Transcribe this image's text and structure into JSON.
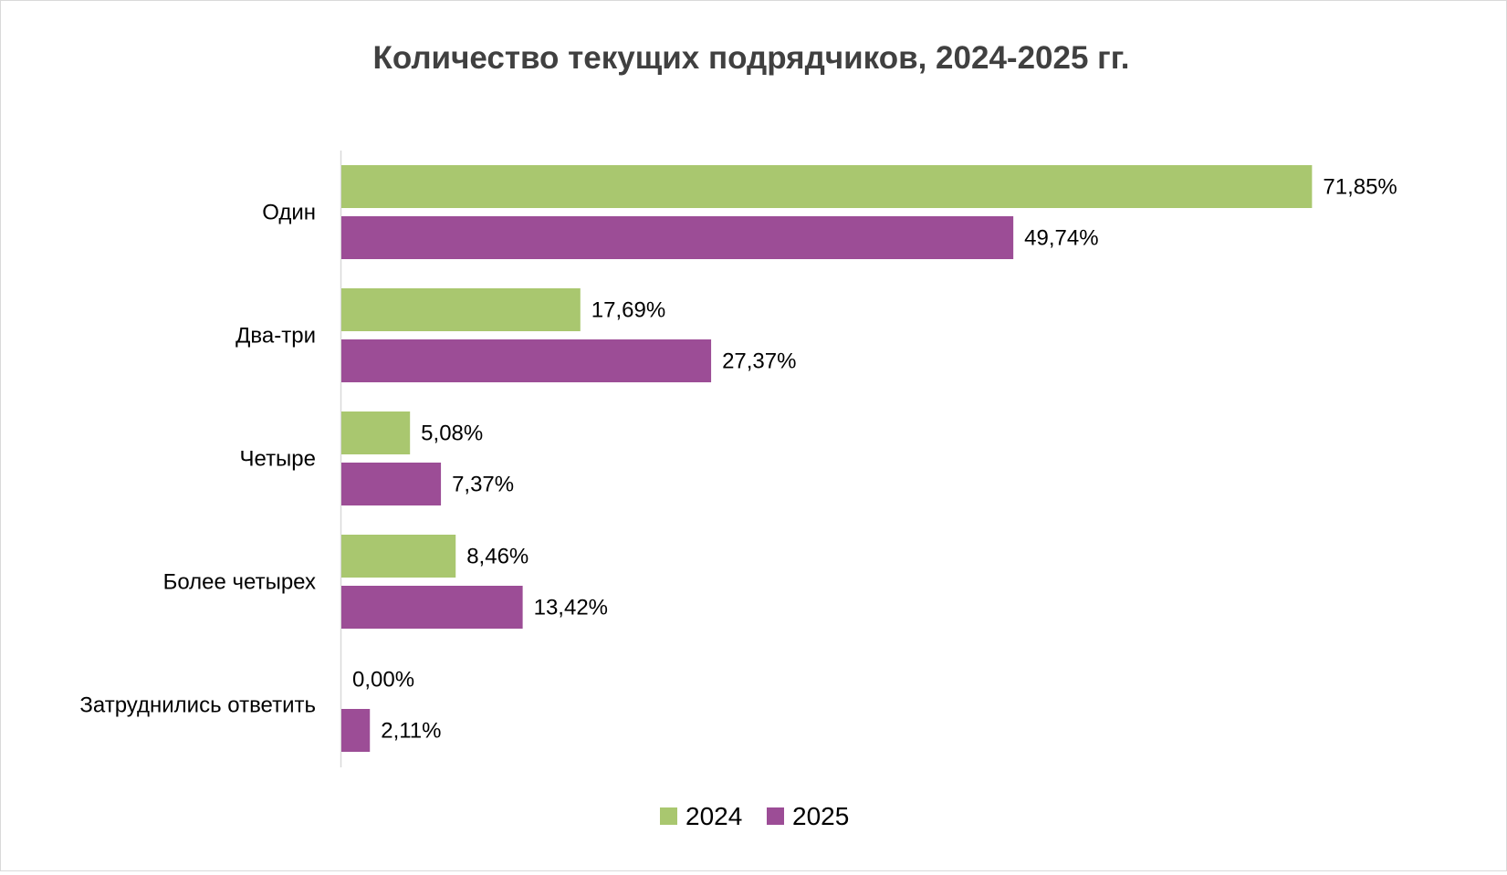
{
  "chart_data": {
    "type": "bar",
    "orientation": "horizontal",
    "title": "Количество текущих подрядчиков, 2024-2025 гг.",
    "xlabel": "",
    "ylabel": "",
    "xlim": [
      0,
      75
    ],
    "grid": false,
    "legend_position": "bottom",
    "categories": [
      "Один",
      "Два-три",
      "Четыре",
      "Более четырех",
      "Затруднились ответить"
    ],
    "series": [
      {
        "name": "2024",
        "color": "#a9c76f",
        "values": [
          71.85,
          17.69,
          5.08,
          8.46,
          0.0
        ],
        "labels": [
          "71,85%",
          "17,69%",
          "5,08%",
          "8,46%",
          "0,00%"
        ]
      },
      {
        "name": "2025",
        "color": "#9c4d96",
        "values": [
          49.74,
          27.37,
          7.37,
          13.42,
          2.11
        ],
        "labels": [
          "49,74%",
          "27,37%",
          "7,37%",
          "13,42%",
          "2,11%"
        ]
      }
    ]
  }
}
